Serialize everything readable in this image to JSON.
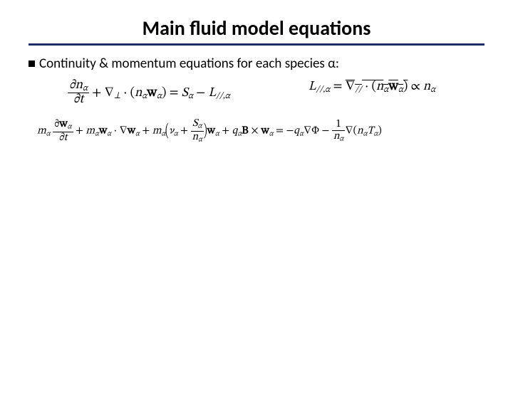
{
  "title": "Main fluid model equations",
  "bullet": "Continuity & momentum equations for each species α:",
  "eq1": {
    "num": "∂n",
    "den": "∂t",
    "op1": " + ∇",
    "perp": "⊥",
    "dot": " · (",
    "nw": "n",
    "w": "w",
    "close": ") = ",
    "S": "S",
    "minus": " − ",
    "L": "L",
    "parsub": "//,"
  },
  "eq2": {
    "L": "L",
    "parsub": "//,",
    "eq": " = ",
    "nabla": "∇",
    "par2": "//",
    "dot": " · (",
    "n": "n",
    "w": "w",
    "close": ") ∝ ",
    "n2": "n"
  },
  "eq3": {
    "m": "m",
    "dwdt_num": "∂",
    "dwdt_den": "∂t",
    "plus1": " + ",
    "dot1": " · ∇",
    "plus2": " + ",
    "nu": "ν",
    "plus3": " + ",
    "S": "S",
    "n": "n",
    "plus4": " + ",
    "q": "q",
    "B": "B",
    "cross": " × ",
    "eq": " = −",
    "nablaPhi": "∇Φ − ",
    "one": "1",
    "nablaNT": "∇(",
    "T": "T",
    "close": ")",
    "w": "w"
  },
  "alpha": "α",
  "colors": {
    "title_rule": "#1f2f66",
    "text": "#000000",
    "background": "#ffffff"
  },
  "fonts": {
    "title_size_pt": 28,
    "body_size_pt": 19,
    "eq_size_pt": 18,
    "eq3_size_pt": 15,
    "title_weight": 700
  }
}
